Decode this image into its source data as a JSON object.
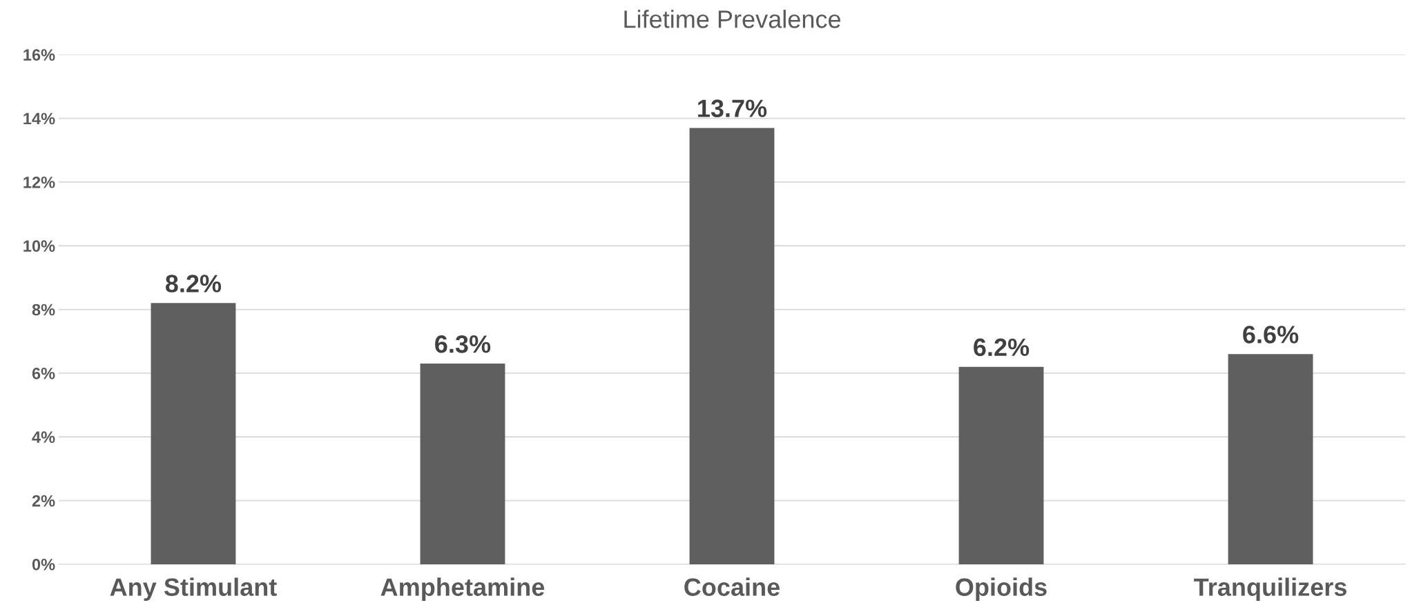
{
  "chart_data": {
    "type": "bar",
    "title": "Lifetime Prevalence",
    "categories": [
      "Any Stimulant",
      "Amphetamine",
      "Cocaine",
      "Opioids",
      "Tranquilizers"
    ],
    "values": [
      8.2,
      6.3,
      13.7,
      6.2,
      6.6
    ],
    "value_labels": [
      "8.2%",
      "6.3%",
      "13.7%",
      "6.2%",
      "6.6%"
    ],
    "color": "#5f5f5f",
    "ylim": [
      0,
      16
    ],
    "yticks": [
      {
        "value": 0,
        "label": "0%"
      },
      {
        "value": 2,
        "label": "2%"
      },
      {
        "value": 4,
        "label": "4%"
      },
      {
        "value": 6,
        "label": "6%"
      },
      {
        "value": 8,
        "label": "8%"
      },
      {
        "value": 10,
        "label": "10%"
      },
      {
        "value": 12,
        "label": "12%"
      },
      {
        "value": 14,
        "label": "14%"
      },
      {
        "value": 16,
        "label": "16%"
      }
    ],
    "grid": "y"
  }
}
